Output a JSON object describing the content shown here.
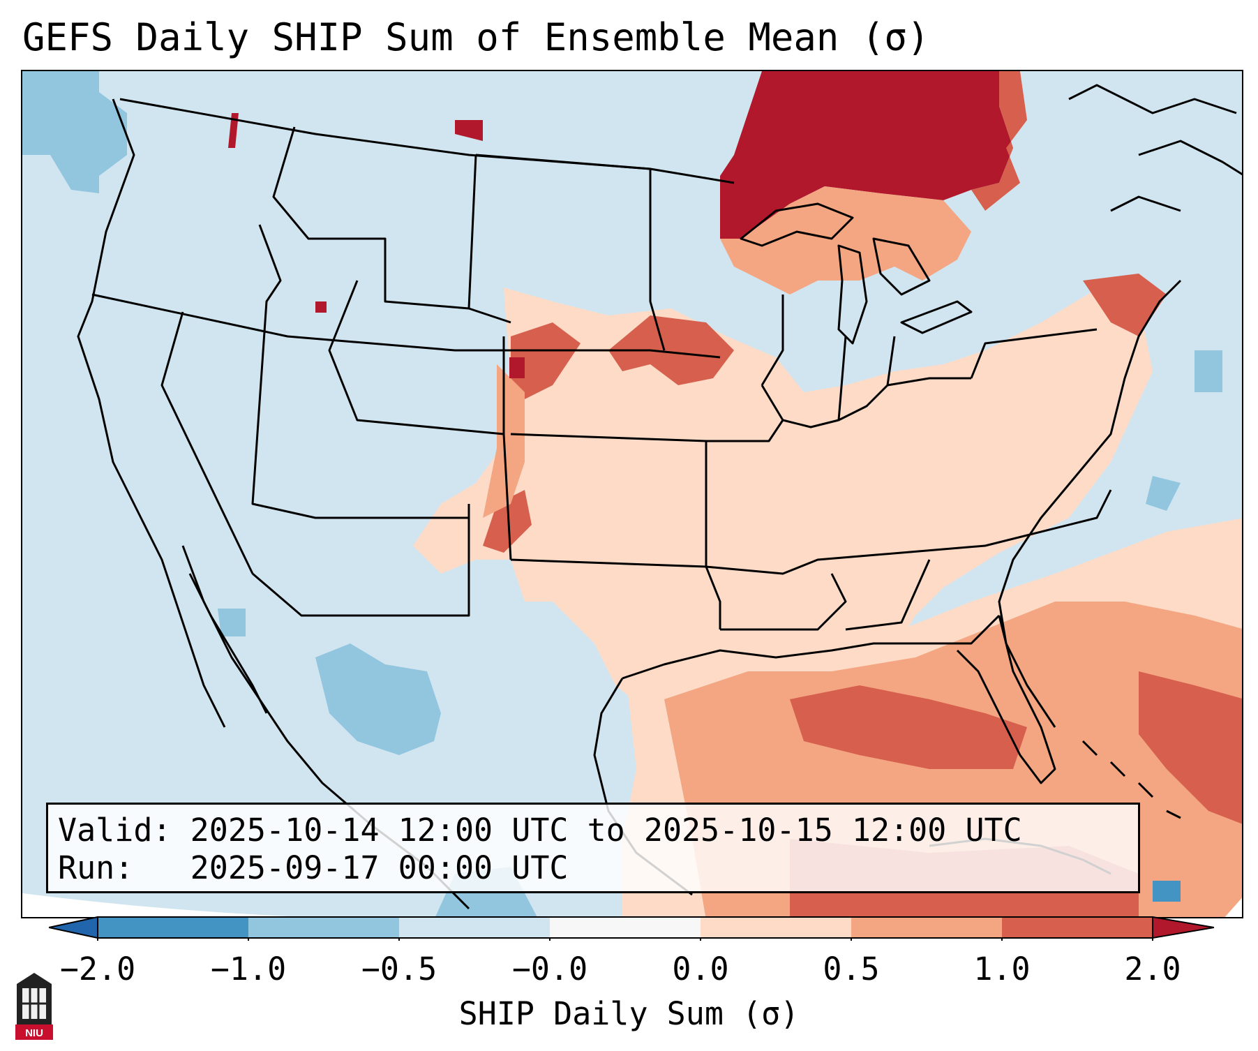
{
  "title": "GEFS Daily SHIP Sum of Ensemble Mean (σ)",
  "info": {
    "valid_label": "Valid:",
    "valid_value": "2025-10-14 12:00 UTC to 2025-10-15 12:00 UTC",
    "run_label": "Run:",
    "run_value": "2025-09-17 00:00 UTC"
  },
  "colorbar": {
    "label": "SHIP Daily Sum (σ)",
    "ticks": [
      "−2.0",
      "−1.0",
      "−0.5",
      "−0.0",
      "0.0",
      "0.5",
      "1.0",
      "2.0"
    ],
    "bins": [
      {
        "range": "< -2.0",
        "color": "#2166ac"
      },
      {
        "range": "-2.0 to -1.0",
        "color": "#4393c3"
      },
      {
        "range": "-1.0 to -0.5",
        "color": "#92c5de"
      },
      {
        "range": "-0.5 to -0.0",
        "color": "#d1e5f0"
      },
      {
        "range": "-0.0 to 0.0",
        "color": "#f7f7f7"
      },
      {
        "range": "0.0 to 0.5",
        "color": "#fddbc7"
      },
      {
        "range": "0.5 to 1.0",
        "color": "#f4a582"
      },
      {
        "range": "1.0 to 2.0",
        "color": "#d6604d"
      },
      {
        "range": "> 2.0",
        "color": "#b2182b"
      }
    ]
  },
  "logo_text": "NIU",
  "colors": {
    "background_field": "#d1e5f0",
    "strong_positive": "#b2182b",
    "positive": "#d6604d",
    "weak_positive": "#f4a582",
    "slight_positive": "#fddbc7",
    "negative": "#92c5de"
  }
}
